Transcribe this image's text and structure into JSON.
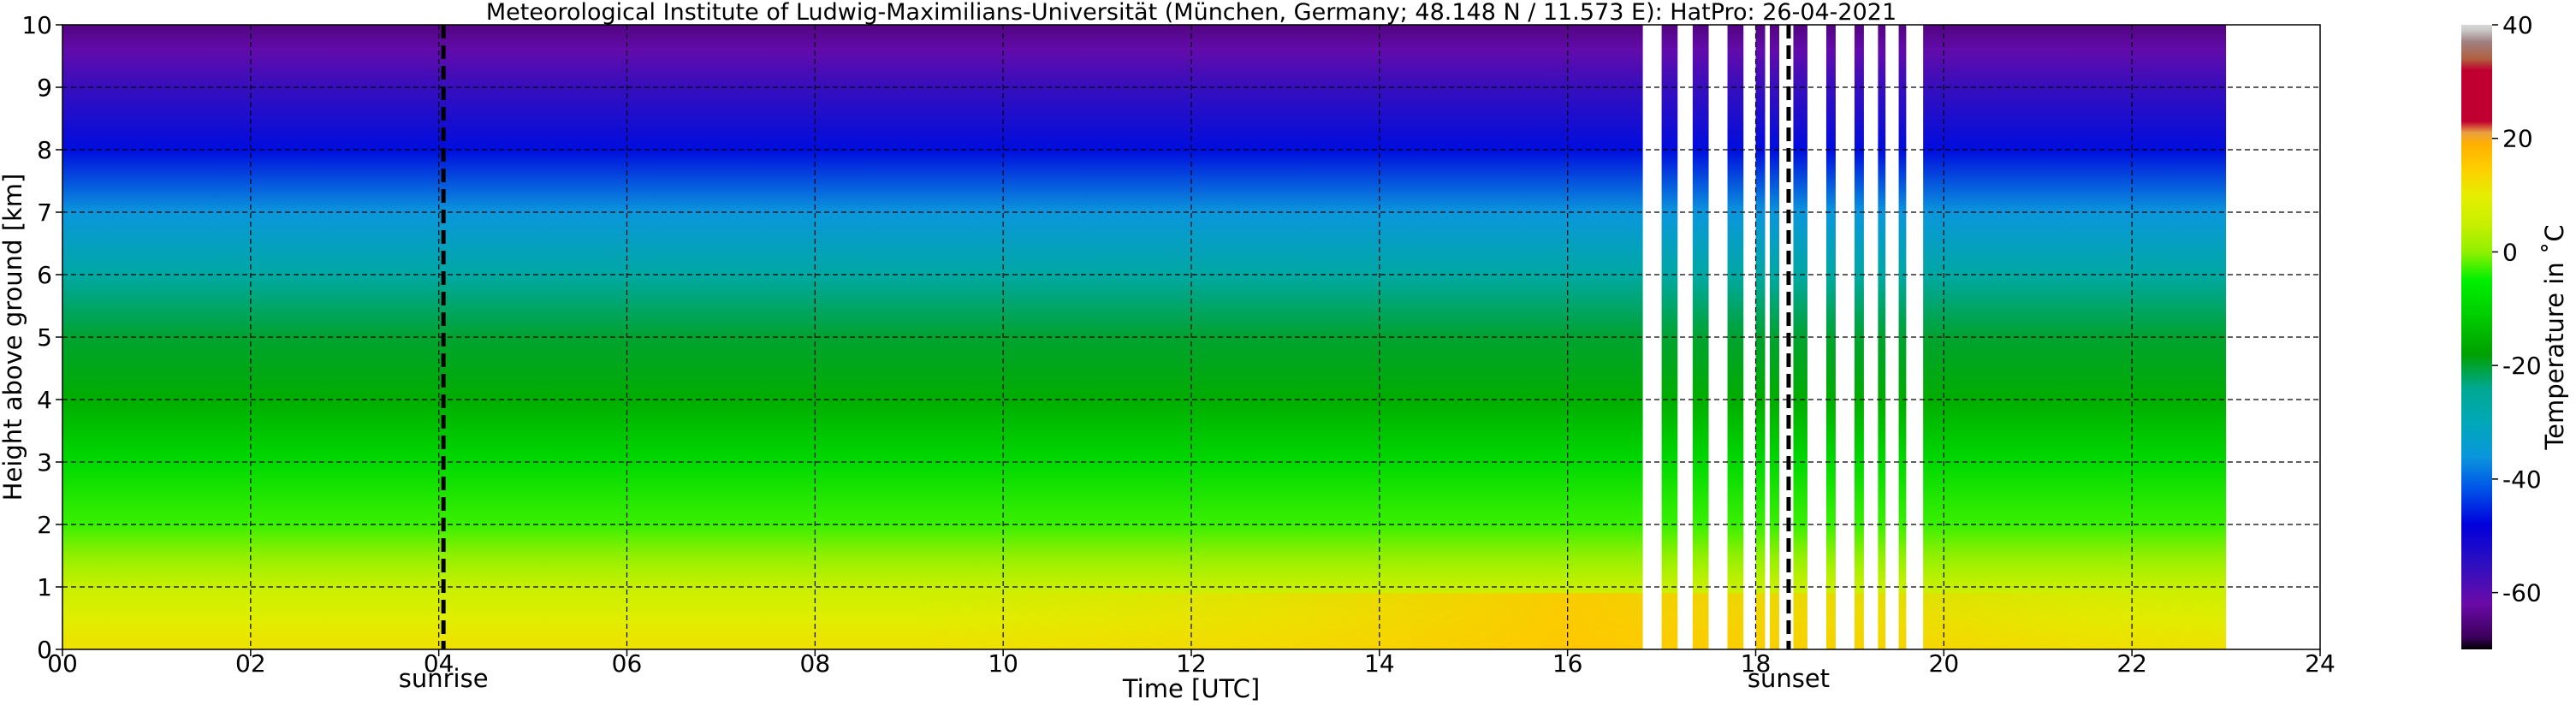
{
  "chart_data": {
    "type": "heatmap",
    "title": "Meteorological Institute of Ludwig-Maximilians-Universität (München, Germany; 48.148 N / 11.573 E):    HatPro: 26-04-2021",
    "xlabel": "Time [UTC]",
    "ylabel": "Height above ground [km]",
    "xlim": [
      0,
      24
    ],
    "ylim": [
      0,
      10
    ],
    "x_ticks": [
      0,
      2,
      4,
      6,
      8,
      10,
      12,
      14,
      16,
      18,
      20,
      22,
      24
    ],
    "x_tick_labels": [
      "00",
      "02",
      "04",
      "06",
      "08",
      "10",
      "12",
      "14",
      "16",
      "18",
      "20",
      "22",
      "24"
    ],
    "y_ticks": [
      0,
      1,
      2,
      3,
      4,
      5,
      6,
      7,
      8,
      9,
      10
    ],
    "y_tick_labels": [
      "0",
      "1",
      "2",
      "3",
      "4",
      "5",
      "6",
      "7",
      "8",
      "9",
      "10"
    ],
    "grid": true,
    "data_time_range": [
      0,
      23
    ],
    "data_gaps": [
      [
        16.8,
        17.0
      ],
      [
        17.17,
        17.33
      ],
      [
        17.5,
        17.7
      ],
      [
        17.87,
        18.0
      ],
      [
        18.1,
        18.15
      ],
      [
        18.25,
        18.4
      ],
      [
        18.55,
        18.75
      ],
      [
        18.85,
        19.05
      ],
      [
        19.15,
        19.3
      ],
      [
        19.38,
        19.52
      ],
      [
        19.6,
        19.78
      ]
    ],
    "temperature_profile": {
      "heights_km": [
        0,
        0.5,
        1,
        1.5,
        2,
        3,
        4,
        5,
        6,
        7,
        8,
        9,
        9.6,
        10
      ],
      "temp_C": [
        12,
        9,
        5,
        0,
        -3,
        -9,
        -16,
        -20,
        -27,
        -36,
        -47,
        -56,
        -61,
        -65
      ]
    },
    "surface_warming_peak": {
      "time_utc": 16,
      "temp_C": 16
    },
    "events": [
      {
        "label": "sunrise",
        "time_utc": 4.05
      },
      {
        "label": "sunset",
        "time_utc": 18.35
      }
    ],
    "colorbar": {
      "label": "Temperature in ˚C",
      "ticks": [
        -60,
        -40,
        -20,
        0,
        20,
        40
      ],
      "range": [
        -70,
        40
      ],
      "stops": [
        {
          "t": -70,
          "color": "#000000"
        },
        {
          "t": -68,
          "color": "#3a0058"
        },
        {
          "t": -62,
          "color": "#6a0aa8"
        },
        {
          "t": -55,
          "color": "#2f0fc0"
        },
        {
          "t": -48,
          "color": "#0000dc"
        },
        {
          "t": -42,
          "color": "#0050e8"
        },
        {
          "t": -36,
          "color": "#0a96dc"
        },
        {
          "t": -30,
          "color": "#00a8b8"
        },
        {
          "t": -24,
          "color": "#00a890"
        },
        {
          "t": -18,
          "color": "#00a000"
        },
        {
          "t": -12,
          "color": "#00c800"
        },
        {
          "t": -5,
          "color": "#00f000"
        },
        {
          "t": 0,
          "color": "#90f000"
        },
        {
          "t": 5,
          "color": "#c8f000"
        },
        {
          "t": 10,
          "color": "#e6ee00"
        },
        {
          "t": 15,
          "color": "#ffcc00"
        },
        {
          "t": 19,
          "color": "#ffb000"
        },
        {
          "t": 21,
          "color": "#e8a040"
        },
        {
          "t": 23,
          "color": "#c00030"
        },
        {
          "t": 32,
          "color": "#c00030"
        },
        {
          "t": 34,
          "color": "#b06040"
        },
        {
          "t": 37,
          "color": "#a08080"
        },
        {
          "t": 39,
          "color": "#c8c8c8"
        },
        {
          "t": 40,
          "color": "#d8d8d8"
        }
      ]
    }
  }
}
